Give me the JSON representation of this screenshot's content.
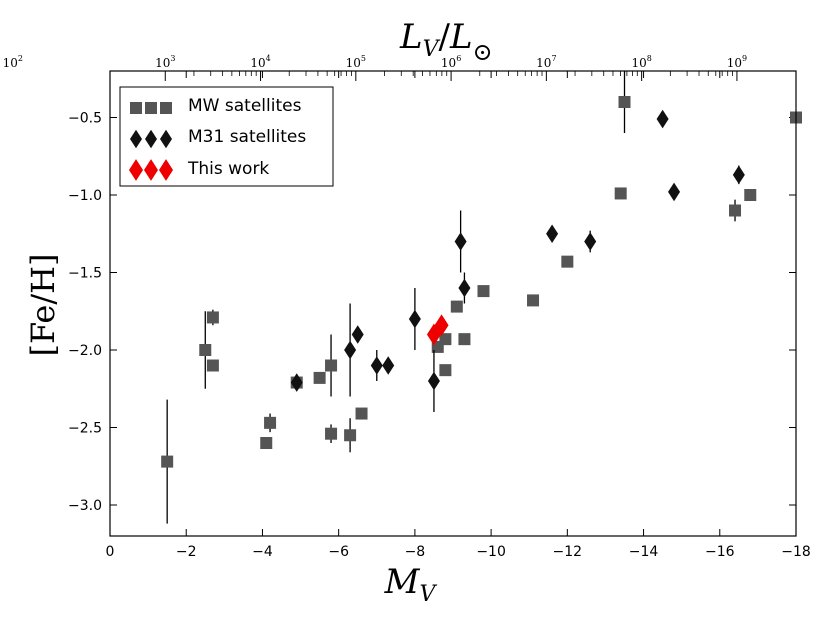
{
  "chart_data": {
    "type": "scatter",
    "xlabel": "M",
    "xlabel_sub": "V",
    "ylabel": "[Fe/H]",
    "top_label_main": "L",
    "top_label_sub": "V",
    "top_label_den": "L",
    "top_label_sun": "⊙",
    "xlim": [
      0,
      -18
    ],
    "ylim": [
      -3.2,
      -0.2
    ],
    "x_ticks": [
      0,
      -2,
      -4,
      -6,
      -8,
      -10,
      -12,
      -14,
      -16,
      -18
    ],
    "x_tick_labels": [
      "0",
      "−2",
      "−4",
      "−6",
      "−8",
      "−10",
      "−12",
      "−14",
      "−16",
      "−18"
    ],
    "y_ticks": [
      -3.0,
      -2.5,
      -2.0,
      -1.5,
      -1.0,
      -0.5
    ],
    "y_tick_labels": [
      "−3.0",
      "−2.5",
      "−2.0",
      "−1.5",
      "−1.0",
      "−0.5"
    ],
    "top_ticks": [
      {
        "mv": 2.55,
        "base": "10",
        "exp": "2"
      },
      {
        "mv": -1.45,
        "base": "10",
        "exp": "3"
      },
      {
        "mv": -3.95,
        "base": "10",
        "exp": "4"
      },
      {
        "mv": -6.45,
        "base": "10",
        "exp": "5"
      },
      {
        "mv": -8.95,
        "base": "10",
        "exp": "6"
      },
      {
        "mv": -11.45,
        "base": "10",
        "exp": "7"
      },
      {
        "mv": -13.95,
        "base": "10",
        "exp": "8"
      },
      {
        "mv": -16.45,
        "base": "10",
        "exp": "9"
      }
    ],
    "legend": [
      {
        "label": "MW satellites",
        "marker": "square",
        "color": "#555555"
      },
      {
        "label": "M31 satellites",
        "marker": "diamond",
        "color": "#111111"
      },
      {
        "label": "This work",
        "marker": "diamond",
        "color": "#ee0000"
      }
    ],
    "series": [
      {
        "name": "MW satellites",
        "marker": "square",
        "color": "#555555",
        "points": [
          {
            "x": -1.5,
            "y": -2.72,
            "err": 0.4
          },
          {
            "x": -2.5,
            "y": -2.0,
            "err": 0.25
          },
          {
            "x": -2.7,
            "y": -2.1,
            "err": 0.0
          },
          {
            "x": -2.7,
            "y": -1.79,
            "err": 0.05
          },
          {
            "x": -4.1,
            "y": -2.6,
            "err": 0.03
          },
          {
            "x": -4.2,
            "y": -2.47,
            "err": 0.06
          },
          {
            "x": -4.9,
            "y": -2.21,
            "err": 0.05
          },
          {
            "x": -5.5,
            "y": -2.18,
            "err": 0.0
          },
          {
            "x": -5.8,
            "y": -2.1,
            "err": 0.2
          },
          {
            "x": -5.8,
            "y": -2.54,
            "err": 0.06
          },
          {
            "x": -6.3,
            "y": -2.55,
            "err": 0.11
          },
          {
            "x": -6.6,
            "y": -2.41,
            "err": 0.0
          },
          {
            "x": -8.6,
            "y": -1.98,
            "err": 0.0
          },
          {
            "x": -8.8,
            "y": -1.93,
            "err": 0.0
          },
          {
            "x": -8.8,
            "y": -2.13,
            "err": 0.0
          },
          {
            "x": -9.1,
            "y": -1.72,
            "err": 0.0
          },
          {
            "x": -9.3,
            "y": -1.93,
            "err": 0.0
          },
          {
            "x": -9.8,
            "y": -1.62,
            "err": 0.0
          },
          {
            "x": -11.1,
            "y": -1.68,
            "err": 0.0
          },
          {
            "x": -12.0,
            "y": -1.43,
            "err": 0.0
          },
          {
            "x": -13.4,
            "y": -0.99,
            "err": 0.0
          },
          {
            "x": -13.5,
            "y": -0.4,
            "err": 0.2
          },
          {
            "x": -16.4,
            "y": -1.1,
            "err": 0.07
          },
          {
            "x": -16.8,
            "y": -1.0,
            "err": 0.0
          },
          {
            "x": -18.0,
            "y": -0.5,
            "err": 0.0
          }
        ]
      },
      {
        "name": "M31 satellites",
        "marker": "diamond",
        "color": "#111111",
        "points": [
          {
            "x": -4.9,
            "y": -2.21,
            "err": 0.04
          },
          {
            "x": -6.3,
            "y": -2.0,
            "err": 0.3
          },
          {
            "x": -6.5,
            "y": -1.9,
            "err": 0.0
          },
          {
            "x": -7.0,
            "y": -2.1,
            "err": 0.1
          },
          {
            "x": -7.3,
            "y": -2.1,
            "err": 0.0
          },
          {
            "x": -8.0,
            "y": -1.8,
            "err": 0.2
          },
          {
            "x": -8.5,
            "y": -2.2,
            "err": 0.2
          },
          {
            "x": -9.2,
            "y": -1.3,
            "err": 0.2
          },
          {
            "x": -9.3,
            "y": -1.6,
            "err": 0.1
          },
          {
            "x": -11.6,
            "y": -1.25,
            "err": 0.0
          },
          {
            "x": -12.6,
            "y": -1.3,
            "err": 0.07
          },
          {
            "x": -14.5,
            "y": -0.51,
            "err": 0.0
          },
          {
            "x": -14.8,
            "y": -0.98,
            "err": 0.0
          },
          {
            "x": -16.5,
            "y": -0.87,
            "err": 0.06
          }
        ]
      },
      {
        "name": "This work",
        "marker": "diamond",
        "color": "#ee0000",
        "points": [
          {
            "x": -8.5,
            "y": -1.9,
            "err": 0.0
          },
          {
            "x": -8.7,
            "y": -1.84,
            "err": 0.0
          }
        ]
      }
    ]
  }
}
